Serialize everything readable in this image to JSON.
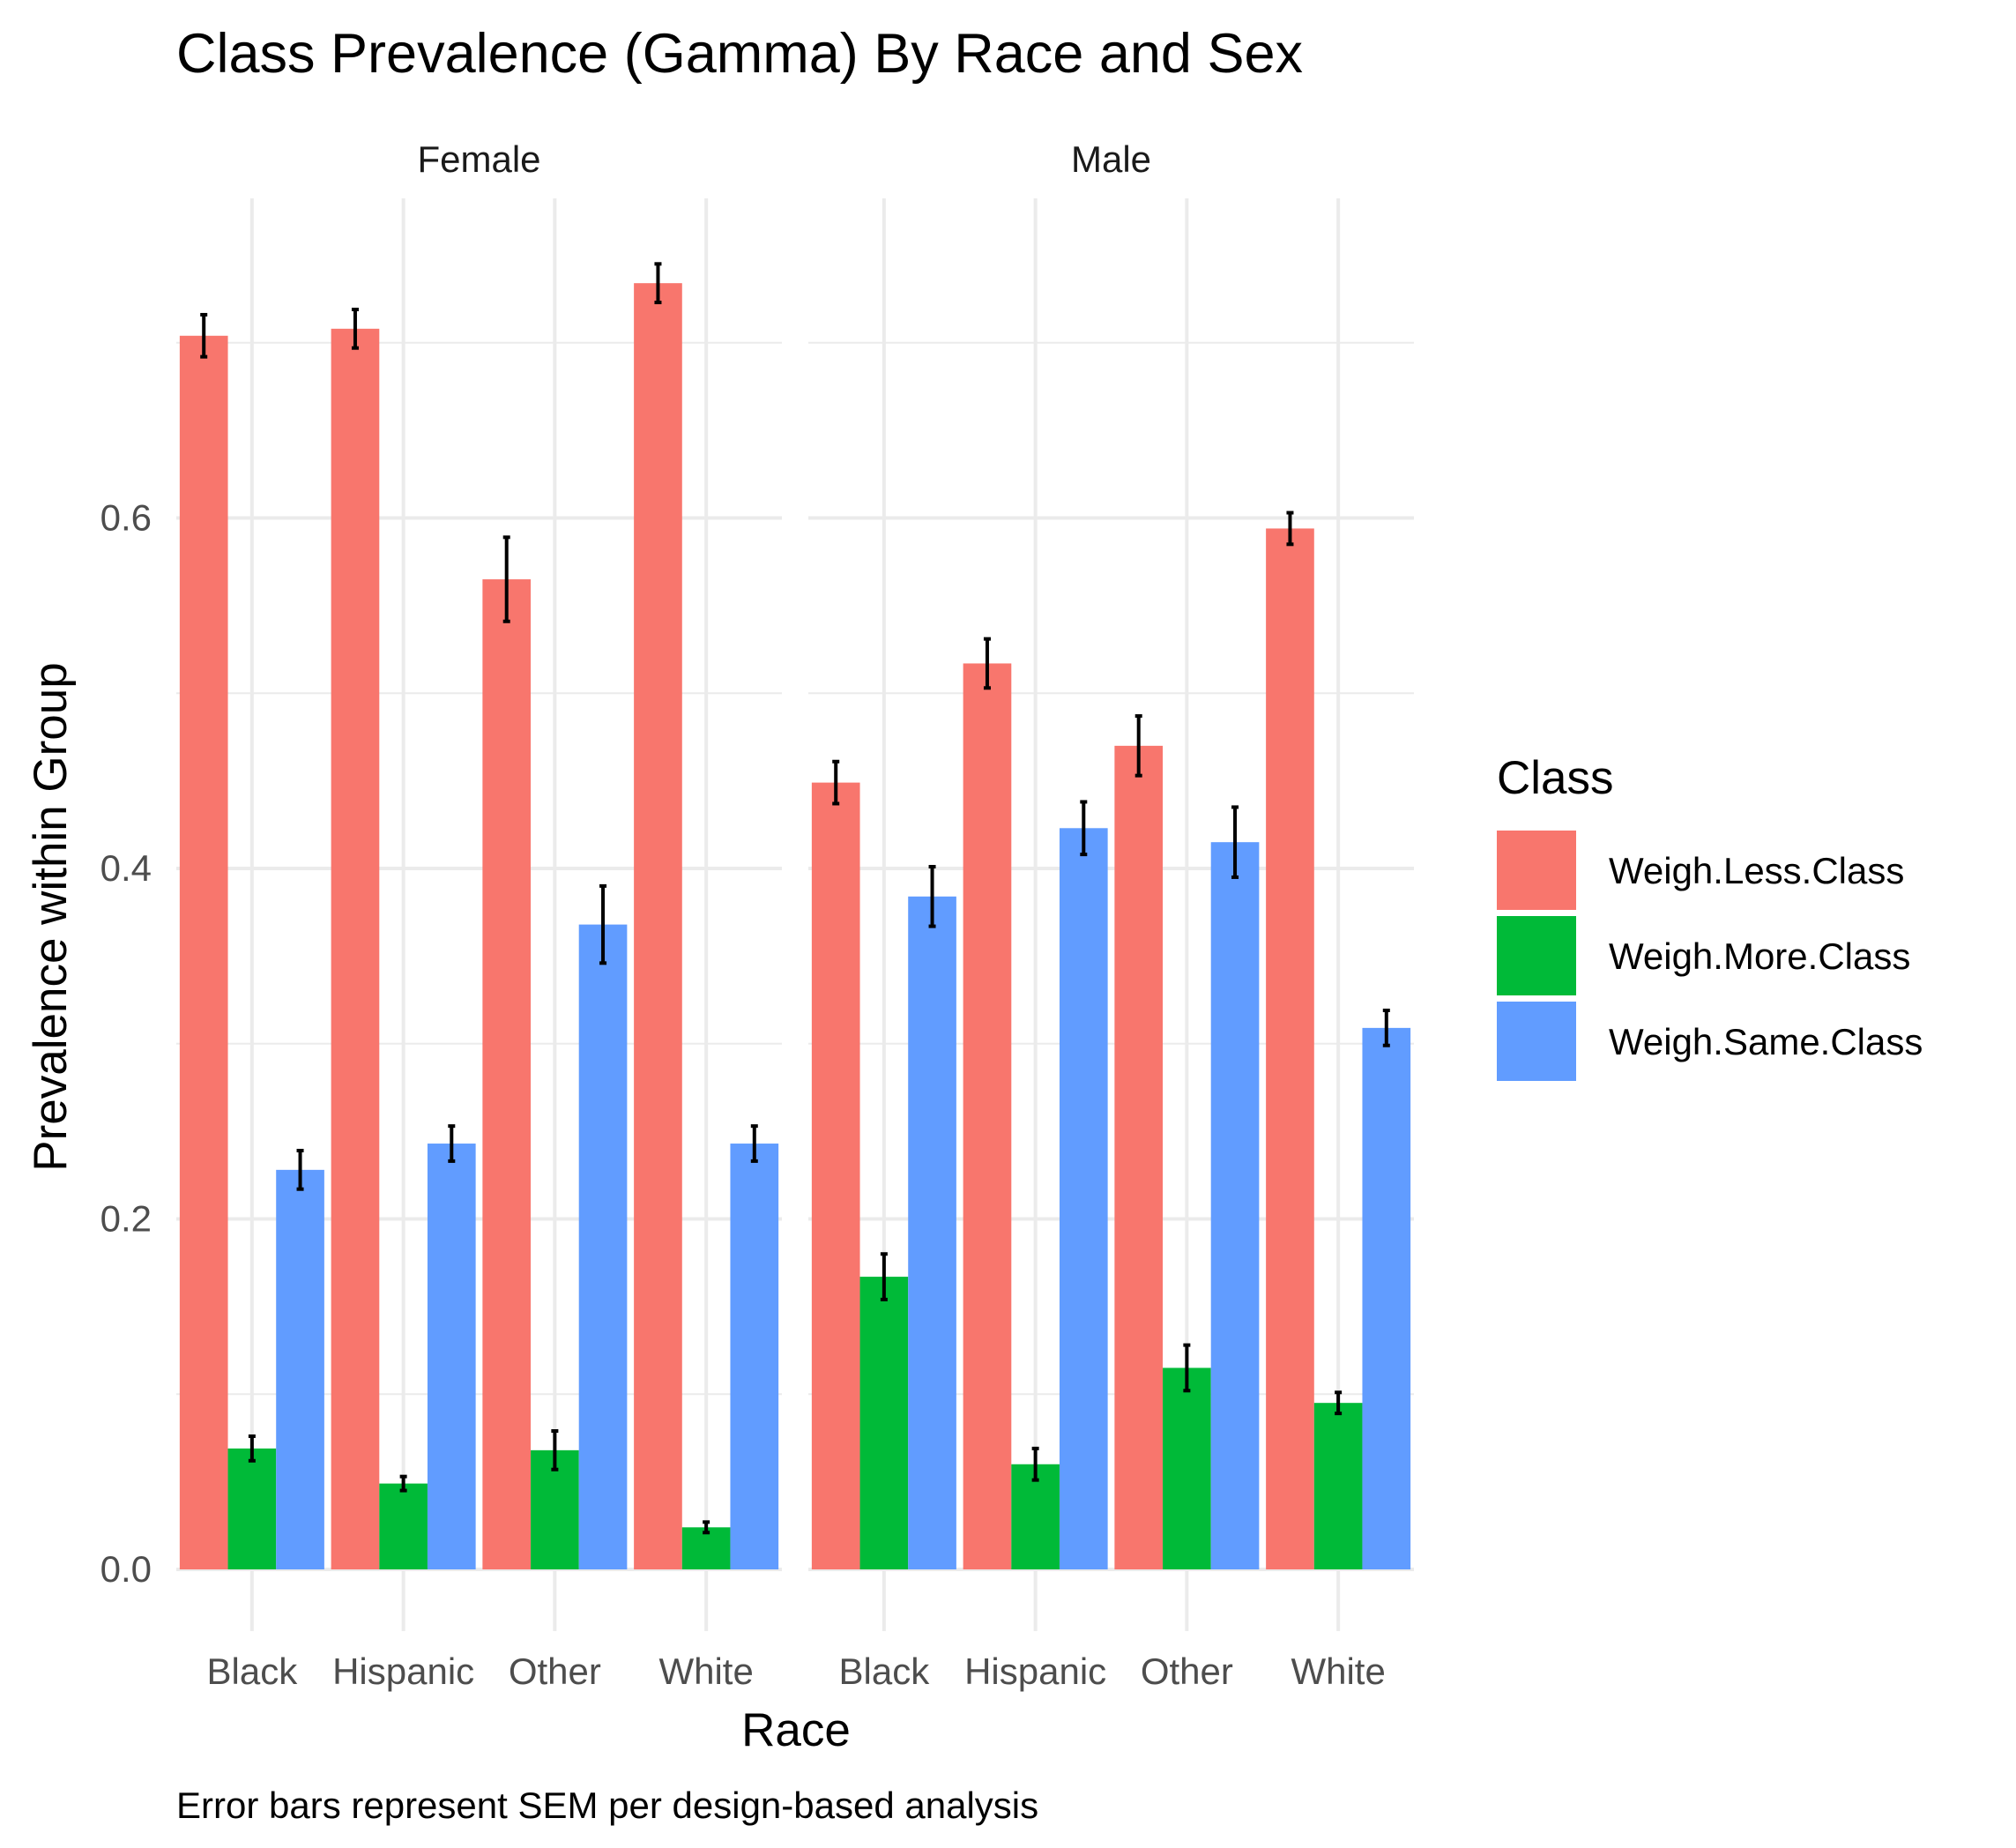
{
  "chart_data": {
    "type": "bar",
    "title": "Class Prevalence (Gamma) By Race and Sex",
    "xlabel": "Race",
    "ylabel": "Prevalence within Group",
    "caption": "Error bars represent SEM per design-based analysis",
    "ylim": [
      0,
      0.8
    ],
    "yticks": [
      "0.0",
      "0.2",
      "0.4",
      "0.6"
    ],
    "grid": true,
    "legend": {
      "title": "Class",
      "position": "right",
      "entries": [
        "Weigh.Less.Class",
        "Weigh.More.Class",
        "Weigh.Same.Class"
      ]
    },
    "colors": [
      "#F8766D",
      "#00BA38",
      "#619CFF"
    ],
    "categories": [
      "Black",
      "Hispanic",
      "Other",
      "White"
    ],
    "facets": [
      {
        "label": "Female",
        "series": [
          {
            "name": "Weigh.Less.Class",
            "values": [
              0.704,
              0.708,
              0.565,
              0.734
            ],
            "sem": [
              0.012,
              0.011,
              0.024,
              0.011
            ]
          },
          {
            "name": "Weigh.More.Class",
            "values": [
              0.069,
              0.049,
              0.068,
              0.024
            ],
            "sem": [
              0.007,
              0.004,
              0.011,
              0.003
            ]
          },
          {
            "name": "Weigh.Same.Class",
            "values": [
              0.228,
              0.243,
              0.368,
              0.243
            ],
            "sem": [
              0.011,
              0.01,
              0.022,
              0.01
            ]
          }
        ]
      },
      {
        "label": "Male",
        "series": [
          {
            "name": "Weigh.Less.Class",
            "values": [
              0.449,
              0.517,
              0.47,
              0.594
            ],
            "sem": [
              0.012,
              0.014,
              0.017,
              0.009
            ]
          },
          {
            "name": "Weigh.More.Class",
            "values": [
              0.167,
              0.06,
              0.115,
              0.095
            ],
            "sem": [
              0.013,
              0.009,
              0.013,
              0.006
            ]
          },
          {
            "name": "Weigh.Same.Class",
            "values": [
              0.384,
              0.423,
              0.415,
              0.309
            ],
            "sem": [
              0.017,
              0.015,
              0.02,
              0.01
            ]
          }
        ]
      }
    ]
  }
}
